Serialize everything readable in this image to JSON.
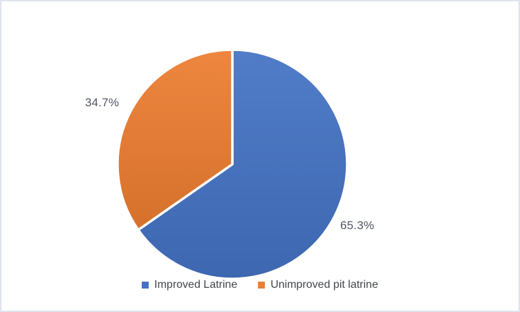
{
  "chart_data": {
    "type": "pie",
    "categories": [
      "Improved Latrine",
      "Unimproved pit latrine"
    ],
    "values": [
      65.3,
      34.7
    ],
    "data_labels": [
      "65.3%",
      "34.7%"
    ],
    "colors": [
      "#4472C4",
      "#ED7D31"
    ],
    "title": "",
    "start_angle_deg": 0,
    "direction": "clockwise",
    "legend_position": "bottom",
    "slice_border_color": "#FFFFFF"
  }
}
